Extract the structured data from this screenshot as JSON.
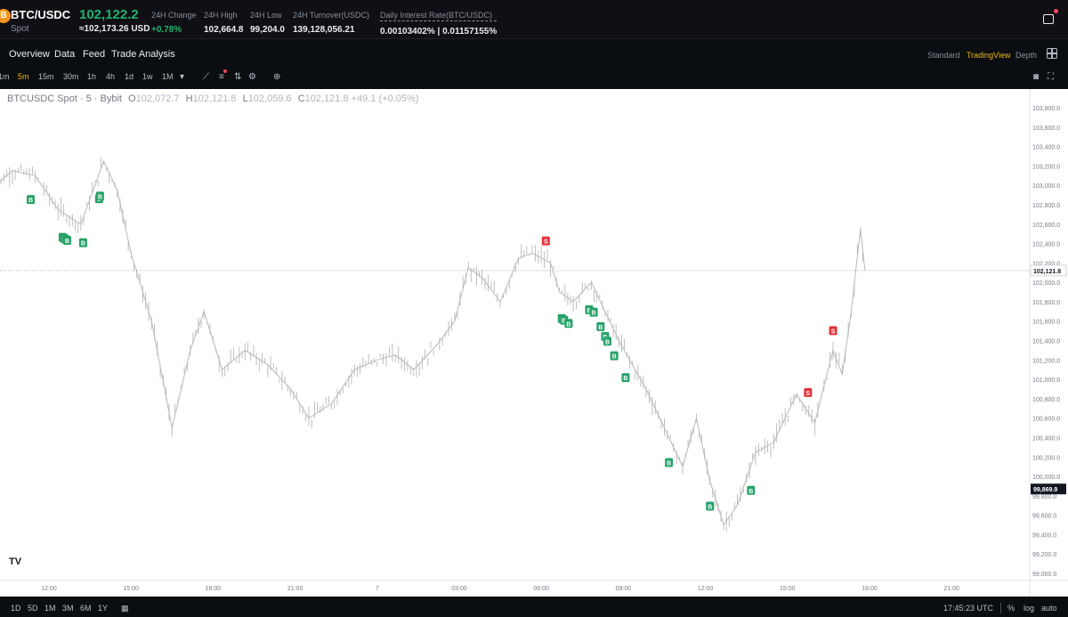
{
  "header": {
    "coin_icon": "B",
    "symbol": "BTC/USDC",
    "market_type": "Spot",
    "last_price": "102,122.2",
    "approx_price": "≈102,173.26 USD",
    "stats": [
      {
        "label": "24H Change",
        "value": "+0.78%"
      },
      {
        "label": "24H High",
        "value": "102,664.8"
      },
      {
        "label": "24H Low",
        "value": "99,204.0"
      },
      {
        "label": "24H Turnover(USDC)",
        "value": "139,128,056.21"
      },
      {
        "label": "Daily Interest Rate(BTC/USDC)",
        "value": "0.00103402% | 0.01157155%"
      }
    ]
  },
  "tabs": [
    "Overview",
    "Data",
    "Feed",
    "Trade Analysis"
  ],
  "view_options": [
    "Standard",
    "TradingView",
    "Depth"
  ],
  "intervals": [
    "1m",
    "5m",
    "15m",
    "30m",
    "1h",
    "4h",
    "1d",
    "1w",
    "1M"
  ],
  "toolbar_icons": [
    "dropdown-arrow-icon",
    "indicator-icon",
    "templates-icon",
    "compare-icon",
    "settings-icon",
    "add-icon"
  ],
  "chart": {
    "legend": {
      "title": "BTCUSDC Spot · 5 · Bybit",
      "o_label": "O",
      "o": "102,072.7",
      "h_label": "H",
      "h": "102,121.8",
      "l_label": "L",
      "l": "102,059.6",
      "c_label": "C",
      "c": "102,121.8",
      "change": "+49.1 (+0.05%)"
    },
    "current_price_label": "102,121.8",
    "crosshair_price_label": "99,869.9",
    "buy_marker": "B",
    "sell_marker": "S",
    "colors": {
      "buy": "#26a269",
      "sell": "#e5343a",
      "candle": "#b8b8b8"
    }
  },
  "chart_data": {
    "type": "line",
    "title": "BTCUSDC Spot · 5 · Bybit",
    "y_ticks": [
      "103,800.0",
      "103,600.0",
      "103,400.0",
      "103,200.0",
      "103,000.0",
      "102,800.0",
      "102,600.0",
      "102,400.0",
      "102,200.0",
      "102,000.0",
      "101,800.0",
      "101,600.0",
      "101,400.0",
      "101,200.0",
      "101,000.0",
      "100,800.0",
      "100,600.0",
      "100,400.0",
      "100,200.0",
      "100,000.0",
      "99,800.0",
      "99,600.0",
      "99,400.0",
      "99,200.0",
      "99,000.0"
    ],
    "x_ticks": [
      "12:00",
      "15:00",
      "18:00",
      "21:00",
      "7",
      "03:00",
      "06:00",
      "09:00",
      "12:00",
      "15:00",
      "18:00",
      "21:00"
    ],
    "ylim": [
      99000,
      103800
    ],
    "x": [
      "09:50",
      "10:40",
      "11:30",
      "12:20",
      "13:10",
      "14:00",
      "14:30",
      "15:00",
      "15:45",
      "16:30",
      "17:10",
      "17:40",
      "18:20",
      "19:10",
      "20:00",
      "20:50",
      "21:30",
      "22:20",
      "23:10",
      "00:00",
      "00:40",
      "01:20",
      "02:10",
      "02:50",
      "03:20",
      "03:50",
      "04:30",
      "05:10",
      "05:40",
      "06:20",
      "06:40",
      "07:10",
      "07:50",
      "08:20",
      "08:50",
      "09:20",
      "09:50",
      "10:30",
      "11:10",
      "11:40",
      "12:10",
      "12:40",
      "13:10",
      "13:50",
      "14:30",
      "15:20",
      "16:00",
      "16:40",
      "17:00",
      "17:20",
      "17:40",
      "17:50"
    ],
    "series": [
      {
        "values": [
          102950,
          103150,
          103100,
          102750,
          102600,
          103250,
          102950,
          102300,
          101600,
          100500,
          101300,
          101700,
          101100,
          101300,
          101150,
          100900,
          100600,
          100750,
          101100,
          101200,
          101250,
          101100,
          101350,
          101600,
          102150,
          102050,
          101800,
          102250,
          102300,
          102200,
          101900,
          101800,
          102000,
          101700,
          101400,
          101150,
          100900,
          100500,
          100100,
          100600,
          99950,
          99500,
          99700,
          100250,
          100350,
          100850,
          100550,
          101300,
          101050,
          101700,
          102550,
          102120
        ]
      }
    ],
    "signals": {
      "buy": [
        "11:20",
        "12:30",
        "12:35",
        "12:40",
        "13:15",
        "13:50",
        "13:52",
        "06:45",
        "06:50",
        "07:00",
        "07:45",
        "07:55",
        "08:10",
        "08:20",
        "08:25",
        "08:40",
        "09:05",
        "10:40",
        "12:10",
        "13:40"
      ],
      "sell": [
        "06:10",
        "15:45",
        "16:40"
      ]
    }
  },
  "bottom": {
    "ranges": [
      "1D",
      "5D",
      "1M",
      "3M",
      "6M",
      "1Y"
    ],
    "clock": "17:45:23 UTC",
    "percent": "%",
    "log": "log",
    "auto": "auto"
  }
}
